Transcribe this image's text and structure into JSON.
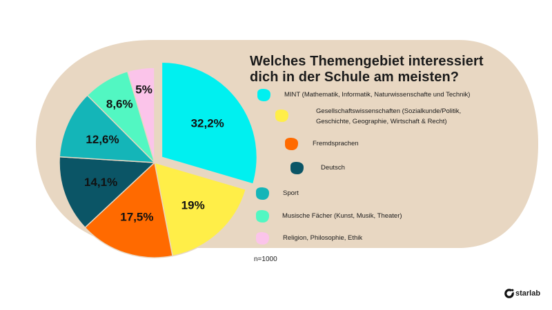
{
  "chart_data": {
    "type": "pie",
    "title": [
      "Welches Themengebiet interessiert",
      "dich in der Schule am meisten?"
    ],
    "categories": [
      "MINT (Mathematik, Informatik, Naturwissenschafte und Technik)",
      "Gesellschaftswissenschaften (Sozialkunde/Politik, Geschichte, Geographie, Wirtschaft & Recht)",
      "Fremdsprachen",
      "Deutsch",
      "Sport",
      "Musische Fächer (Kunst, Musik, Theater)",
      "Religion, Philosophie, Ethik"
    ],
    "values": [
      32.2,
      19,
      17.5,
      14.1,
      12.6,
      8.6,
      5
    ],
    "data_labels": [
      "32,2%",
      "19%",
      "17,5%",
      "14,1%",
      "12,6%",
      "8,6%",
      "5%"
    ],
    "colors": [
      "#00f0f0",
      "#ffee48",
      "#ff6a00",
      "#0b5566",
      "#14b5b8",
      "#52f7c2",
      "#fbc4ea"
    ],
    "exploded_slice": "MINT (Mathematik, Informatik, Naturwissenschafte und Technik)",
    "legend_placement": "right",
    "legend_labels": [
      [
        "MINT (Mathematik, Informatik, Naturwissenschafte und Technik)"
      ],
      [
        "Gesellschaftswissenschaften (Sozialkunde/Politik,",
        "Geschichte, Geographie, Wirtschaft & Recht)"
      ],
      [
        "Fremdsprachen"
      ],
      [
        "Deutsch"
      ],
      [
        "Sport"
      ],
      [
        "Musische Fächer (Kunst, Musik, Theater)"
      ],
      [
        "Religion, Philosophie, Ethik"
      ]
    ],
    "note": "n=1000"
  },
  "background_color": "#e8d7c2",
  "brand": {
    "logo_text": "starlab",
    "logo_icon": "starlab-logo-icon"
  }
}
